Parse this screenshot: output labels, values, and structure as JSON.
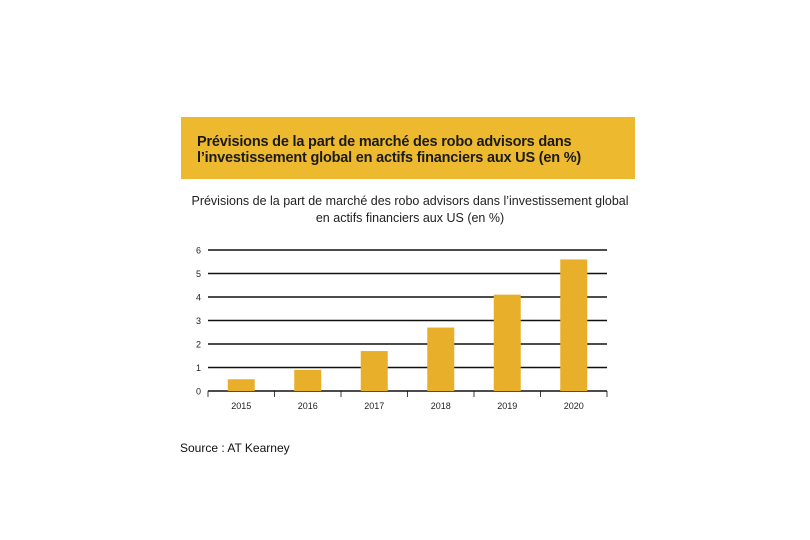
{
  "banner": {
    "line1": "Prévisions de la part de marché des robo advisors dans",
    "line2": "l’investissement global en actifs financiers aux US (en %)"
  },
  "source": "Source : AT Kearney",
  "colors": {
    "banner": "#EDB92E",
    "bar": "#E8B02A",
    "grid": "#111111"
  },
  "chart_data": {
    "type": "bar",
    "title_line1": "Prévisions de la part de marché des robo advisors dans l’investissement global",
    "title_line2": "en actifs financiers aux US (en %)",
    "categories": [
      "2015",
      "2016",
      "2017",
      "2018",
      "2019",
      "2020"
    ],
    "values": [
      0.5,
      0.9,
      1.7,
      2.7,
      4.1,
      5.6
    ],
    "yticks": [
      0,
      1,
      2,
      3,
      4,
      5,
      6
    ],
    "ylim": [
      0,
      6
    ],
    "grid": true,
    "xlabel": "",
    "ylabel": ""
  }
}
